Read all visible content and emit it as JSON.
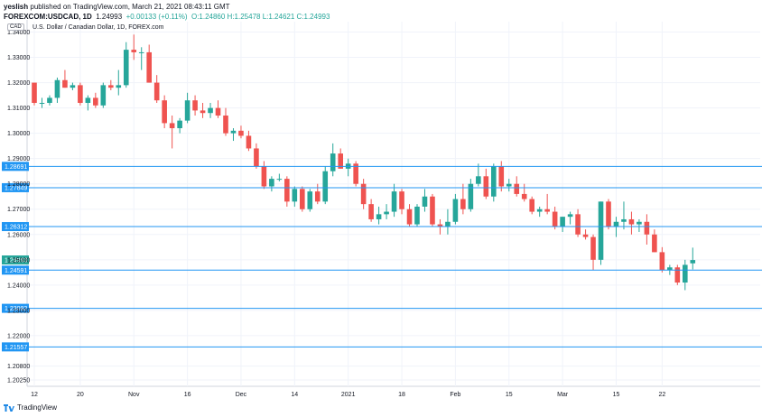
{
  "header": {
    "publisher": "yeslish",
    "published_text": " published on TradingView.com, March 21, 2021 08:43:11 GMT",
    "symbol": "FOREXCOM:USDCAD, 1D",
    "price": "1.24993",
    "change": "+0.00133 (+0.11%)",
    "ohlc": "O:1.24860  H:1.25478  L:1.24621  C:1.24993"
  },
  "chart_title": "U.S. Dollar / Canadian Dollar, 1D, FOREX.com",
  "currency_badge": "CAD",
  "footer": {
    "brand": "TradingView"
  },
  "colors": {
    "up": "#26a69a",
    "down": "#ef5350",
    "level": "#2196f3",
    "grid": "#f0f3fa",
    "current": "#26a69a"
  },
  "chart_data": {
    "type": "candlestick",
    "ylim": [
      1.2,
      1.3441
    ],
    "y_ticks": [
      "1.34000",
      "1.33000",
      "1.32000",
      "1.31000",
      "1.30000",
      "1.29000",
      "1.28000",
      "1.27000",
      "1.26000",
      "1.25000",
      "1.24000",
      "1.23000",
      "1.22000",
      "1.20800",
      "1.20250"
    ],
    "y_tick_values": [
      1.34,
      1.33,
      1.32,
      1.31,
      1.3,
      1.29,
      1.28,
      1.27,
      1.26,
      1.25,
      1.24,
      1.23,
      1.22,
      1.208,
      1.2025
    ],
    "x_ticks": [
      "12",
      "20",
      "Nov",
      "16",
      "Dec",
      "14",
      "2021",
      "18",
      "Feb",
      "15",
      "Mar",
      "15",
      "22"
    ],
    "x_tick_index": [
      0,
      6,
      13,
      20,
      27,
      34,
      41,
      48,
      55,
      62,
      69,
      76,
      82
    ],
    "levels": [
      {
        "value": 1.28691,
        "label": "1.28691"
      },
      {
        "value": 1.27849,
        "label": "1.27849"
      },
      {
        "value": 1.26312,
        "label": "1.26312"
      },
      {
        "value": 1.24591,
        "label": "1.24591"
      },
      {
        "value": 1.23082,
        "label": "1.23082"
      },
      {
        "value": 1.21557,
        "label": "1.21557"
      }
    ],
    "current_price": {
      "value": 1.24993,
      "label": "1.24993"
    },
    "candles": [
      [
        1.32,
        1.32,
        1.311,
        1.312
      ],
      [
        1.312,
        1.314,
        1.31,
        1.312
      ],
      [
        1.312,
        1.315,
        1.311,
        1.314
      ],
      [
        1.314,
        1.322,
        1.312,
        1.321
      ],
      [
        1.321,
        1.325,
        1.318,
        1.318
      ],
      [
        1.318,
        1.32,
        1.317,
        1.319
      ],
      [
        1.319,
        1.32,
        1.311,
        1.312
      ],
      [
        1.312,
        1.315,
        1.309,
        1.314
      ],
      [
        1.314,
        1.316,
        1.31,
        1.311
      ],
      [
        1.311,
        1.32,
        1.31,
        1.319
      ],
      [
        1.319,
        1.321,
        1.317,
        1.318
      ],
      [
        1.318,
        1.325,
        1.315,
        1.319
      ],
      [
        1.319,
        1.336,
        1.318,
        1.333
      ],
      [
        1.333,
        1.339,
        1.329,
        1.332
      ],
      [
        1.332,
        1.334,
        1.325,
        1.332
      ],
      [
        1.332,
        1.335,
        1.32,
        1.32
      ],
      [
        1.32,
        1.323,
        1.312,
        1.313
      ],
      [
        1.313,
        1.315,
        1.302,
        1.304
      ],
      [
        1.304,
        1.307,
        1.294,
        1.302
      ],
      [
        1.302,
        1.306,
        1.3,
        1.305
      ],
      [
        1.305,
        1.316,
        1.304,
        1.313
      ],
      [
        1.313,
        1.315,
        1.307,
        1.309
      ],
      [
        1.309,
        1.312,
        1.306,
        1.308
      ],
      [
        1.308,
        1.312,
        1.306,
        1.31
      ],
      [
        1.31,
        1.313,
        1.306,
        1.307
      ],
      [
        1.307,
        1.31,
        1.299,
        1.3
      ],
      [
        1.3,
        1.302,
        1.297,
        1.301
      ],
      [
        1.301,
        1.303,
        1.298,
        1.299
      ],
      [
        1.299,
        1.301,
        1.293,
        1.294
      ],
      [
        1.294,
        1.296,
        1.286,
        1.287
      ],
      [
        1.287,
        1.289,
        1.278,
        1.279
      ],
      [
        1.279,
        1.283,
        1.277,
        1.282
      ],
      [
        1.282,
        1.284,
        1.281,
        1.282
      ],
      [
        1.282,
        1.283,
        1.271,
        1.273
      ],
      [
        1.273,
        1.279,
        1.271,
        1.278
      ],
      [
        1.278,
        1.279,
        1.269,
        1.27
      ],
      [
        1.27,
        1.278,
        1.269,
        1.277
      ],
      [
        1.277,
        1.28,
        1.272,
        1.273
      ],
      [
        1.273,
        1.287,
        1.272,
        1.285
      ],
      [
        1.285,
        1.296,
        1.283,
        1.292
      ],
      [
        1.292,
        1.294,
        1.286,
        1.286
      ],
      [
        1.286,
        1.29,
        1.283,
        1.288
      ],
      [
        1.288,
        1.289,
        1.279,
        1.28
      ],
      [
        1.28,
        1.282,
        1.27,
        1.272
      ],
      [
        1.272,
        1.274,
        1.265,
        1.266
      ],
      [
        1.266,
        1.271,
        1.264,
        1.268
      ],
      [
        1.268,
        1.272,
        1.266,
        1.269
      ],
      [
        1.269,
        1.28,
        1.267,
        1.277
      ],
      [
        1.277,
        1.278,
        1.268,
        1.27
      ],
      [
        1.27,
        1.272,
        1.263,
        1.264
      ],
      [
        1.264,
        1.272,
        1.263,
        1.271
      ],
      [
        1.271,
        1.278,
        1.269,
        1.275
      ],
      [
        1.275,
        1.276,
        1.263,
        1.264
      ],
      [
        1.264,
        1.266,
        1.26,
        1.263
      ],
      [
        1.263,
        1.27,
        1.26,
        1.265
      ],
      [
        1.265,
        1.276,
        1.264,
        1.274
      ],
      [
        1.274,
        1.28,
        1.268,
        1.27
      ],
      [
        1.27,
        1.282,
        1.269,
        1.28
      ],
      [
        1.28,
        1.288,
        1.279,
        1.283
      ],
      [
        1.283,
        1.286,
        1.274,
        1.275
      ],
      [
        1.275,
        1.288,
        1.273,
        1.287
      ],
      [
        1.287,
        1.289,
        1.277,
        1.279
      ],
      [
        1.279,
        1.282,
        1.277,
        1.28
      ],
      [
        1.28,
        1.283,
        1.275,
        1.276
      ],
      [
        1.276,
        1.28,
        1.273,
        1.274
      ],
      [
        1.274,
        1.275,
        1.268,
        1.269
      ],
      [
        1.269,
        1.271,
        1.267,
        1.27
      ],
      [
        1.27,
        1.276,
        1.268,
        1.269
      ],
      [
        1.269,
        1.271,
        1.262,
        1.263
      ],
      [
        1.263,
        1.267,
        1.261,
        1.267
      ],
      [
        1.267,
        1.269,
        1.264,
        1.268
      ],
      [
        1.268,
        1.27,
        1.259,
        1.26
      ],
      [
        1.26,
        1.262,
        1.258,
        1.259
      ],
      [
        1.259,
        1.26,
        1.246,
        1.25
      ],
      [
        1.25,
        1.273,
        1.248,
        1.273
      ],
      [
        1.273,
        1.274,
        1.262,
        1.263
      ],
      [
        1.263,
        1.267,
        1.259,
        1.265
      ],
      [
        1.265,
        1.273,
        1.262,
        1.266
      ],
      [
        1.266,
        1.269,
        1.26,
        1.264
      ],
      [
        1.264,
        1.266,
        1.261,
        1.265
      ],
      [
        1.265,
        1.268,
        1.256,
        1.26
      ],
      [
        1.26,
        1.262,
        1.253,
        1.253
      ],
      [
        1.253,
        1.255,
        1.245,
        1.246
      ],
      [
        1.246,
        1.248,
        1.244,
        1.247
      ],
      [
        1.247,
        1.248,
        1.24,
        1.241
      ],
      [
        1.241,
        1.25,
        1.238,
        1.248
      ],
      [
        1.2486,
        1.2548,
        1.2462,
        1.2499
      ]
    ]
  }
}
